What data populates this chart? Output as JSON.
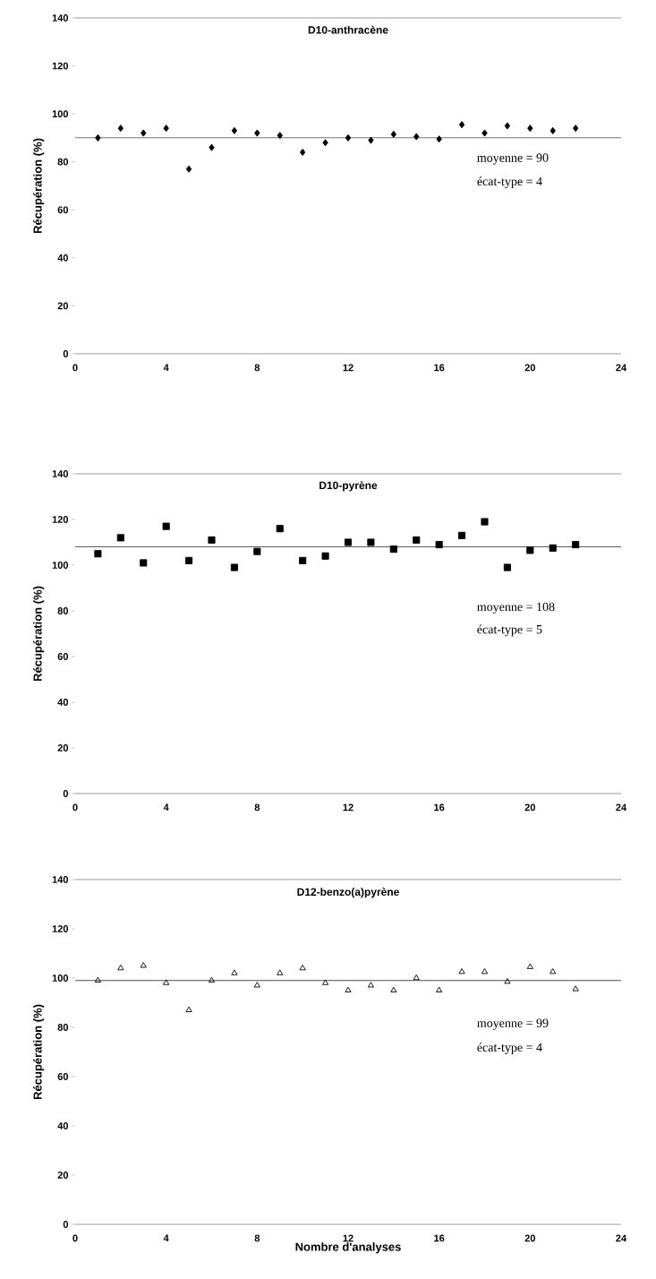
{
  "chart_data": [
    {
      "type": "scatter",
      "title": "D10-anthracène",
      "ylabel": "Récupération (%)",
      "xlim": [
        0,
        24
      ],
      "ylim": [
        0,
        140
      ],
      "xticks": [
        0,
        4,
        8,
        12,
        16,
        20,
        24
      ],
      "yticks": [
        0,
        20,
        40,
        60,
        80,
        100,
        120,
        140
      ],
      "x": [
        1,
        2,
        3,
        4,
        5,
        6,
        7,
        8,
        9,
        10,
        11,
        12,
        13,
        14,
        15,
        16,
        17,
        18,
        19,
        20,
        21,
        22
      ],
      "series": [
        {
          "color": "#000000",
          "marker": "diamond",
          "values": [
            90,
            94,
            92,
            94,
            77,
            86,
            93,
            92,
            91,
            84,
            88,
            90,
            89,
            91.5,
            90.5,
            89.5,
            95.5,
            92,
            95,
            94,
            93,
            94
          ]
        }
      ],
      "ref_lines": [
        {
          "axis": "y",
          "value": 90,
          "color": "#000000",
          "line_style": "solid"
        }
      ],
      "annotations": [
        "moyenne = 90",
        "écat-type = 4"
      ]
    },
    {
      "type": "scatter",
      "title": "D10-pyrène",
      "ylabel": "Récupération (%)",
      "xlim": [
        0,
        24
      ],
      "ylim": [
        0,
        140
      ],
      "xticks": [
        0,
        4,
        8,
        12,
        16,
        20,
        24
      ],
      "yticks": [
        0,
        20,
        40,
        60,
        80,
        100,
        120,
        140
      ],
      "x": [
        1,
        2,
        3,
        4,
        5,
        6,
        7,
        8,
        9,
        10,
        11,
        12,
        13,
        14,
        15,
        16,
        17,
        18,
        19,
        20,
        21,
        22
      ],
      "series": [
        {
          "color": "#000000",
          "marker": "square",
          "values": [
            105,
            112,
            101,
            117,
            102,
            111,
            99,
            106,
            116,
            102,
            104,
            110,
            110,
            107,
            111,
            109,
            113,
            119,
            99,
            106.5,
            107.5,
            109
          ]
        }
      ],
      "ref_lines": [
        {
          "axis": "y",
          "value": 108,
          "color": "#000000",
          "line_style": "solid"
        }
      ],
      "annotations": [
        "moyenne = 108",
        "écat-type = 5"
      ]
    },
    {
      "type": "scatter",
      "title": "D12-benzo(a)pyrène",
      "xlabel": "Nombre d'analyses",
      "ylabel": "Récupération (%)",
      "xlim": [
        0,
        24
      ],
      "ylim": [
        0,
        140
      ],
      "xticks": [
        0,
        4,
        8,
        12,
        16,
        20,
        24
      ],
      "yticks": [
        0,
        20,
        40,
        60,
        80,
        100,
        120,
        140
      ],
      "x": [
        1,
        2,
        3,
        4,
        5,
        6,
        7,
        8,
        9,
        10,
        11,
        12,
        13,
        14,
        15,
        16,
        17,
        18,
        19,
        20,
        21,
        22
      ],
      "series": [
        {
          "color": "#000000",
          "marker": "triangle",
          "values": [
            99,
            104,
            105,
            98,
            87,
            99,
            102,
            97,
            102,
            104,
            98,
            95,
            97,
            95,
            100,
            95,
            102.5,
            102.5,
            98.5,
            104.5,
            102.5,
            95.5
          ]
        }
      ],
      "ref_lines": [
        {
          "axis": "y",
          "value": 99,
          "color": "#000000",
          "line_style": "solid"
        }
      ],
      "annotations": [
        "moyenne = 99",
        "écat-type = 4"
      ]
    }
  ]
}
